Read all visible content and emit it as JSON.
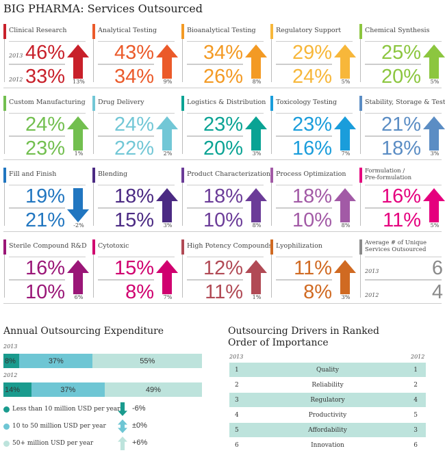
{
  "title": "BIG PHARMA: Services Outsourced",
  "year_2013": "2013",
  "year_2012": "2012",
  "tiles": [
    {
      "name": "Clinical Research",
      "v2013": "46%",
      "v2012": "33%",
      "change": "13%",
      "dir": "up",
      "color": "#c8202a",
      "years": true
    },
    {
      "name": "Analytical Testing",
      "v2013": "43%",
      "v2012": "34%",
      "change": "9%",
      "dir": "up",
      "color": "#eb5a2a"
    },
    {
      "name": "Bioanalytical Testing",
      "v2013": "34%",
      "v2012": "26%",
      "change": "8%",
      "dir": "up",
      "color": "#f39a24"
    },
    {
      "name": "Regulatory Support",
      "v2013": "29%",
      "v2012": "24%",
      "change": "5%",
      "dir": "up",
      "color": "#f7b73a"
    },
    {
      "name": "Chemical Synthesis",
      "v2013": "25%",
      "v2012": "20%",
      "change": "5%",
      "dir": "up",
      "color": "#8cc63f"
    },
    {
      "name": "Custom Manufacturing",
      "v2013": "24%",
      "v2012": "23%",
      "change": "1%",
      "dir": "up",
      "color": "#72bf4f"
    },
    {
      "name": "Drug Delivery",
      "v2013": "24%",
      "v2012": "22%",
      "change": "2%",
      "dir": "up",
      "color": "#72c7d6"
    },
    {
      "name": "Logistics & Distribution",
      "v2013": "23%",
      "v2012": "20%",
      "change": "3%",
      "dir": "up",
      "color": "#0aa394"
    },
    {
      "name": "Toxicology Testing",
      "v2013": "23%",
      "v2012": "16%",
      "change": "7%",
      "dir": "up",
      "color": "#1a9ddb"
    },
    {
      "name": "Stability, Storage & Testing",
      "v2013": "21%",
      "v2012": "18%",
      "change": "3%",
      "dir": "up",
      "color": "#5b8dc4"
    },
    {
      "name": "Fill and Finish",
      "v2013": "19%",
      "v2012": "21%",
      "change": "-2%",
      "dir": "down",
      "color": "#2176c0"
    },
    {
      "name": "Blending",
      "v2013": "18%",
      "v2012": "15%",
      "change": "3%",
      "dir": "up",
      "color": "#4b2a83"
    },
    {
      "name": "Product Characterization",
      "v2013": "18%",
      "v2012": "10%",
      "change": "8%",
      "dir": "up",
      "color": "#6b3c98"
    },
    {
      "name": "Process Optimization",
      "v2013": "18%",
      "v2012": "10%",
      "change": "8%",
      "dir": "up",
      "color": "#a25aa6"
    },
    {
      "name": "Formulation / Pre-formulation",
      "line1": "Formulation /",
      "line2": "Pre-formulation",
      "v2013": "16%",
      "v2012": "11%",
      "change": "5%",
      "dir": "up",
      "color": "#e5007e"
    },
    {
      "name": "Sterile Compound R&D",
      "v2013": "16%",
      "v2012": "10%",
      "change": "6%",
      "dir": "up",
      "color": "#9a1677"
    },
    {
      "name": "Cytotoxic",
      "v2013": "15%",
      "v2012": "8%",
      "change": "7%",
      "dir": "up",
      "color": "#d0006f"
    },
    {
      "name": "High Potency Compounds",
      "v2013": "12%",
      "v2012": "11%",
      "change": "1%",
      "dir": "up",
      "color": "#b14a55"
    },
    {
      "name": "Lyophilization",
      "v2013": "11%",
      "v2012": "8%",
      "change": "3%",
      "dir": "up",
      "color": "#d06a22"
    },
    {
      "name": "Average # of Unique Services Outsourced",
      "line1": "Average # of Unique",
      "line2": "Services Outsourced",
      "v2013": "6",
      "v2012": "4",
      "color": "#8a8a8a",
      "years": true,
      "average": true
    }
  ],
  "chart_data": {
    "type": "bar",
    "title": "Annual Outsourcing Expenditure",
    "categories": [
      "2013",
      "2012"
    ],
    "series": [
      {
        "name": "Less than 10 million USD per year",
        "values": [
          8,
          14
        ],
        "color": "#1a9b8e",
        "change": "-6%",
        "dir": "down"
      },
      {
        "name": "10 to 50 million USD per year",
        "values": [
          37,
          37
        ],
        "color": "#6ec6d4",
        "change": "±0%",
        "dir": "both"
      },
      {
        "name": "50+ million USD per year",
        "values": [
          55,
          49
        ],
        "color": "#bde3dc",
        "change": "+6%",
        "dir": "up"
      }
    ],
    "labels": [
      [
        "8%",
        "37%",
        "55%"
      ],
      [
        "14%",
        "37%",
        "49%"
      ]
    ],
    "stacked": true,
    "orientation": "horizontal"
  },
  "drivers": {
    "title_line1": "Outsourcing Drivers in Ranked",
    "title_line2": "Order of Importance",
    "col_2013": "2013",
    "col_2012": "2012",
    "rows": [
      {
        "r2013": "1",
        "name": "Quality",
        "r2012": "1"
      },
      {
        "r2013": "2",
        "name": "Reliability",
        "r2012": "2"
      },
      {
        "r2013": "3",
        "name": "Regulatory",
        "r2012": "4"
      },
      {
        "r2013": "4",
        "name": "Productivity",
        "r2012": "5"
      },
      {
        "r2013": "5",
        "name": "Affordability",
        "r2012": "3"
      },
      {
        "r2013": "6",
        "name": "Innovation",
        "r2012": "6"
      }
    ]
  }
}
